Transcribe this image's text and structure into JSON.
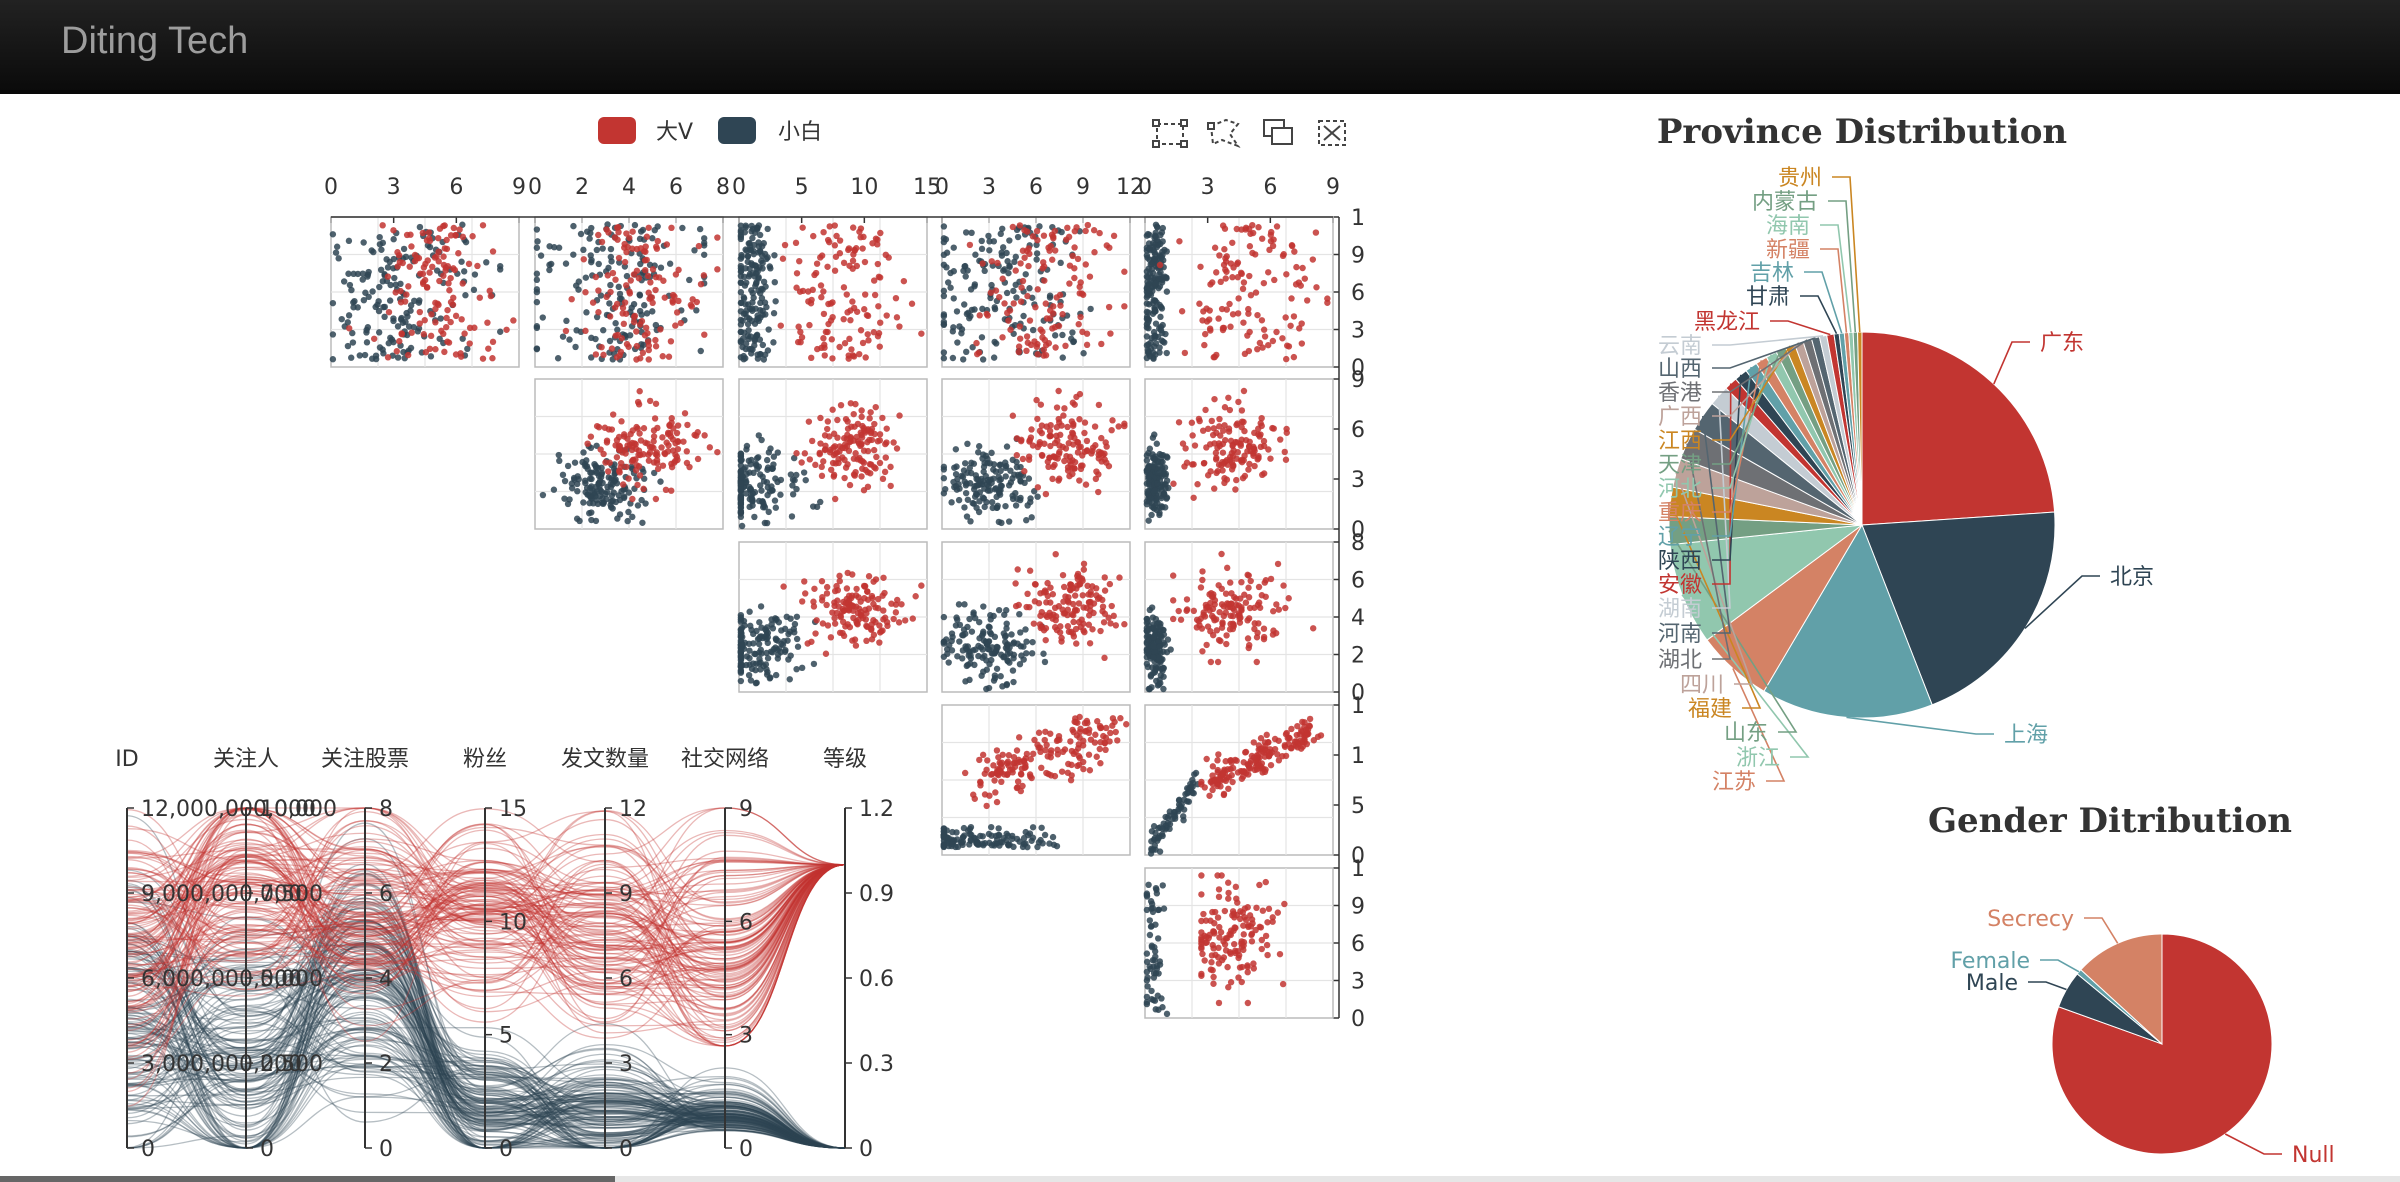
{
  "navbar": {
    "brand": "Diting Tech"
  },
  "colors": {
    "red": "#c23531",
    "navy": "#2f4554"
  },
  "toolbox": {
    "icons": [
      "rect-select-icon",
      "lasso-select-icon",
      "keep-selection-icon",
      "clear-selection-icon"
    ]
  },
  "chart_data": [
    {
      "type": "scatter",
      "name": "scatter-matrix",
      "legend": {
        "items": [
          "大V",
          "小白"
        ],
        "placement": "top-center"
      },
      "x_axes": [
        {
          "ticks": [
            "0",
            "3",
            "6",
            "9"
          ],
          "range": [
            0,
            9
          ]
        },
        {
          "ticks": [
            "0",
            "2",
            "4",
            "6",
            "8"
          ],
          "range": [
            0,
            8
          ]
        },
        {
          "ticks": [
            "0",
            "5",
            "10",
            "15"
          ],
          "range": [
            0,
            15
          ]
        },
        {
          "ticks": [
            "0",
            "3",
            "6",
            "9",
            "12"
          ],
          "range": [
            0,
            12
          ]
        },
        {
          "ticks": [
            "0",
            "3",
            "6",
            "9"
          ],
          "range": [
            0,
            9
          ]
        }
      ],
      "y_axes": [
        {
          "ticks": [
            "0",
            "3",
            "6",
            "9",
            "1"
          ]
        },
        {
          "ticks": [
            "0",
            "3",
            "6",
            "9"
          ]
        },
        {
          "ticks": [
            "0",
            "2",
            "4",
            "6",
            "8"
          ]
        },
        {
          "ticks": [
            "0",
            "5",
            "1",
            "1"
          ]
        },
        {
          "ticks": [
            "0",
            "3",
            "6",
            "9",
            "1"
          ]
        }
      ],
      "grid": true
    },
    {
      "type": "parallel",
      "name": "parallel-coordinates",
      "axes": [
        {
          "name": "ID",
          "ticks": [
            "0",
            "3,000,000,000",
            "6,000,000,000",
            "9,000,000,000",
            "12,000,000,000"
          ]
        },
        {
          "name": "关注人",
          "ticks": [
            "0",
            "2,500",
            "5,000",
            "7,500",
            "10,000"
          ]
        },
        {
          "name": "关注股票",
          "ticks": [
            "0",
            "2",
            "4",
            "6",
            "8"
          ]
        },
        {
          "name": "粉丝",
          "ticks": [
            "0",
            "5",
            "10",
            "15"
          ]
        },
        {
          "name": "发文数量",
          "ticks": [
            "0",
            "3",
            "6",
            "9",
            "12"
          ]
        },
        {
          "name": "社交网络",
          "ticks": [
            "0",
            "3",
            "6",
            "9"
          ]
        },
        {
          "name": "等级",
          "ticks": [
            "0",
            "0.3",
            "0.6",
            "0.9",
            "1.2"
          ]
        }
      ],
      "series": [
        {
          "name": "大V",
          "color": "#c23531"
        },
        {
          "name": "小白",
          "color": "#2f4554"
        }
      ]
    },
    {
      "type": "pie",
      "title": "Province Distribution",
      "slices": [
        {
          "label": "广东",
          "value": 1960,
          "color": "#c23531"
        },
        {
          "label": "北京",
          "value": 1650,
          "color": "#2f4554"
        },
        {
          "label": "上海",
          "value": 1180,
          "color": "#61a0a8"
        },
        {
          "label": "江苏",
          "value": 520,
          "color": "#d48265"
        },
        {
          "label": "浙江",
          "value": 700,
          "color": "#91c7ae"
        },
        {
          "label": "山东",
          "value": 190,
          "color": "#749f83"
        },
        {
          "label": "福建",
          "value": 200,
          "color": "#ca8622"
        },
        {
          "label": "四川",
          "value": 200,
          "color": "#bda29a"
        },
        {
          "label": "湖北",
          "value": 220,
          "color": "#6e7074"
        },
        {
          "label": "河南",
          "value": 210,
          "color": "#546570"
        },
        {
          "label": "湖南",
          "value": 140,
          "color": "#c4ccd3"
        },
        {
          "label": "安徽",
          "value": 90,
          "color": "#c23531"
        },
        {
          "label": "陕西",
          "value": 90,
          "color": "#2f4554"
        },
        {
          "label": "辽宁",
          "value": 85,
          "color": "#61a0a8"
        },
        {
          "label": "重庆",
          "value": 80,
          "color": "#d48265"
        },
        {
          "label": "河北",
          "value": 75,
          "color": "#91c7ae"
        },
        {
          "label": "天津",
          "value": 70,
          "color": "#749f83"
        },
        {
          "label": "江西",
          "value": 65,
          "color": "#ca8622"
        },
        {
          "label": "广西",
          "value": 60,
          "color": "#bda29a"
        },
        {
          "label": "香港",
          "value": 60,
          "color": "#6e7074"
        },
        {
          "label": "山西",
          "value": 55,
          "color": "#546570"
        },
        {
          "label": "云南",
          "value": 50,
          "color": "#c4ccd3"
        },
        {
          "label": "黑龙江",
          "value": 50,
          "color": "#c23531"
        },
        {
          "label": "甘肃",
          "value": 35,
          "color": "#2f4554"
        },
        {
          "label": "吉林",
          "value": 35,
          "color": "#61a0a8"
        },
        {
          "label": "新疆",
          "value": 30,
          "color": "#d48265"
        },
        {
          "label": "海南",
          "value": 30,
          "color": "#91c7ae"
        },
        {
          "label": "内蒙古",
          "value": 30,
          "color": "#749f83"
        },
        {
          "label": "贵州",
          "value": 30,
          "color": "#ca8622"
        }
      ]
    },
    {
      "type": "pie",
      "title": "Gender Ditribution",
      "slices": [
        {
          "label": "Null",
          "value": 80.5,
          "color": "#c23531"
        },
        {
          "label": "Male",
          "value": 5.5,
          "color": "#2f4554"
        },
        {
          "label": "Female",
          "value": 0.8,
          "color": "#61a0a8"
        },
        {
          "label": "Secrecy",
          "value": 13.2,
          "color": "#d48265"
        }
      ]
    }
  ]
}
